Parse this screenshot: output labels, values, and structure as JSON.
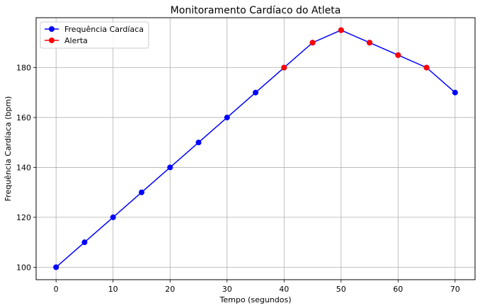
{
  "chart_data": {
    "type": "line",
    "title": "Monitoramento Cardíaco do Atleta",
    "xlabel": "Tempo (segundos)",
    "ylabel": "Frequência Cardíaca (bpm)",
    "xlim": [
      -3.5,
      73.5
    ],
    "ylim": [
      95,
      200
    ],
    "xticks": [
      0,
      10,
      20,
      30,
      40,
      50,
      60,
      70
    ],
    "yticks": [
      100,
      120,
      140,
      160,
      180
    ],
    "grid": true,
    "legend_position": "top-left",
    "series": [
      {
        "name": "Frequência Cardíaca",
        "color": "#0000ff",
        "line": true,
        "x": [
          0,
          5,
          10,
          15,
          20,
          25,
          30,
          35,
          40,
          45,
          50,
          55,
          60,
          65,
          70
        ],
        "y": [
          100,
          110,
          120,
          130,
          140,
          150,
          160,
          170,
          180,
          190,
          195,
          190,
          185,
          180,
          170
        ]
      },
      {
        "name": "Alerta",
        "color": "#ff0000",
        "line": false,
        "x": [
          40,
          45,
          50,
          55,
          60,
          65
        ],
        "y": [
          180,
          190,
          195,
          190,
          185,
          180
        ]
      }
    ]
  }
}
